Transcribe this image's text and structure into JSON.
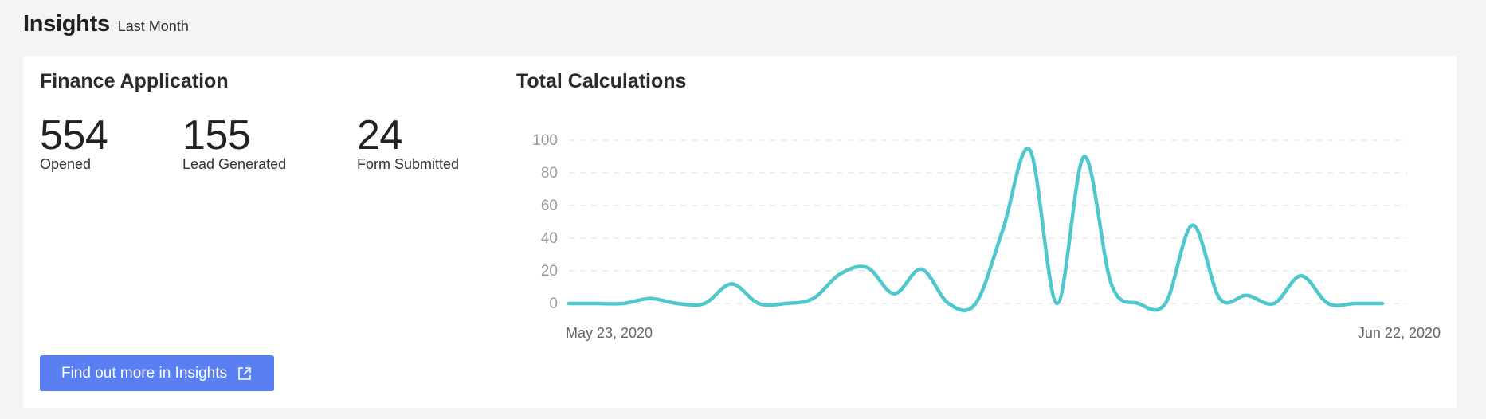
{
  "header": {
    "title": "Insights",
    "subtitle": "Last Month"
  },
  "finance": {
    "title": "Finance Application",
    "stats": [
      {
        "value": "554",
        "label": "Opened"
      },
      {
        "value": "155",
        "label": "Lead Generated"
      },
      {
        "value": "24",
        "label": "Form Submitted"
      }
    ],
    "cta_label": "Find out more in Insights",
    "cta_icon": "external-link-icon"
  },
  "chart_section": {
    "title": "Total Calculations"
  },
  "chart_data": {
    "type": "line",
    "title": "Total Calculations",
    "xlabel": "",
    "ylabel": "",
    "x_start_label": "May 23, 2020",
    "x_end_label": "Jun 22, 2020",
    "ylim": [
      0,
      100
    ],
    "y_ticks": [
      0,
      20,
      40,
      60,
      80,
      100
    ],
    "grid": true,
    "color": "#4fc8cd",
    "series": [
      {
        "x": [
          "May 23, 2020",
          "May 24, 2020",
          "May 25, 2020",
          "May 26, 2020",
          "May 27, 2020",
          "May 28, 2020",
          "May 29, 2020",
          "May 30, 2020",
          "May 31, 2020",
          "Jun 1, 2020",
          "Jun 2, 2020",
          "Jun 3, 2020",
          "Jun 4, 2020",
          "Jun 5, 2020",
          "Jun 6, 2020",
          "Jun 7, 2020",
          "Jun 8, 2020",
          "Jun 9, 2020",
          "Jun 10, 2020",
          "Jun 11, 2020",
          "Jun 12, 2020",
          "Jun 13, 2020",
          "Jun 14, 2020",
          "Jun 15, 2020",
          "Jun 16, 2020",
          "Jun 17, 2020",
          "Jun 18, 2020",
          "Jun 19, 2020",
          "Jun 20, 2020",
          "Jun 21, 2020",
          "Jun 22, 2020"
        ],
        "values": [
          0,
          0,
          0,
          3,
          0,
          0,
          12,
          0,
          0,
          3,
          18,
          22,
          6,
          21,
          0,
          0,
          45,
          94,
          0,
          90,
          12,
          0,
          0,
          48,
          3,
          5,
          0,
          17,
          0,
          0,
          0
        ]
      }
    ]
  }
}
